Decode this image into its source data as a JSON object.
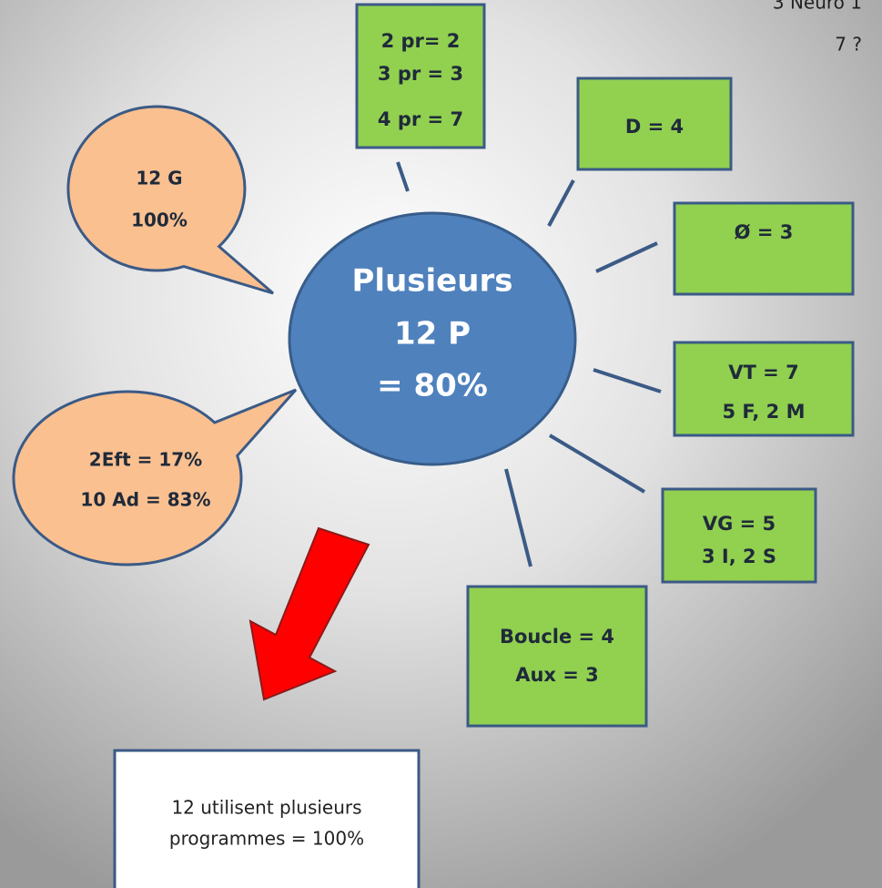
{
  "center": {
    "lines": [
      "Plusieurs",
      "12 P",
      "= 80%"
    ]
  },
  "boxes": [
    {
      "lines": [
        "2 pr= 2",
        "3 pr = 3",
        "4 pr = 7"
      ]
    },
    {
      "lines": [
        "D = 4"
      ]
    },
    {
      "lines": [
        "Ø = 3"
      ]
    },
    {
      "lines": [
        "VT = 7",
        "5 F, 2 M"
      ]
    },
    {
      "lines": [
        "VG = 5",
        "3 I, 2 S"
      ]
    },
    {
      "lines": [
        "Boucle = 4",
        "Aux = 3"
      ]
    }
  ],
  "bubbles": [
    {
      "lines": [
        "12 G",
        "100%"
      ]
    },
    {
      "lines": [
        "2Eft = 17%",
        "10 Ad = 83%"
      ]
    }
  ],
  "summary": {
    "lines": [
      "12 utilisent plusieurs",
      "programmes = 100%"
    ]
  },
  "corner_notes": [
    "3 Neuro 1",
    "7 ?"
  ]
}
